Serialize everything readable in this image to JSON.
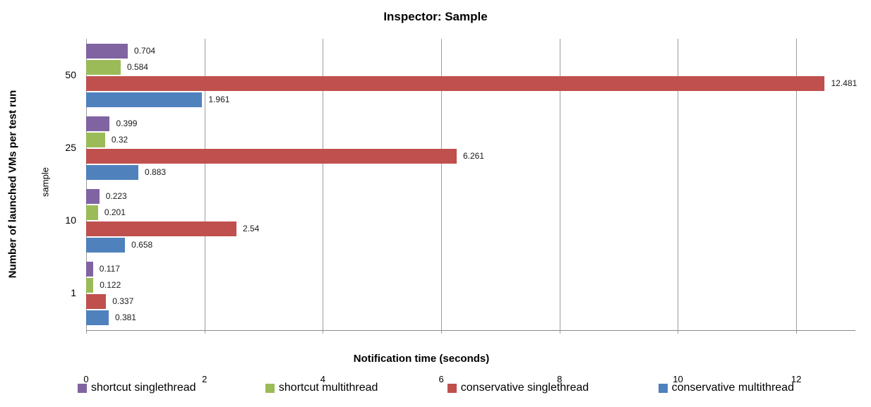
{
  "chart_data": {
    "type": "bar",
    "orientation": "horizontal",
    "title": "Inspector: Sample",
    "xlabel": "Notification time (seconds)",
    "ylabel": "Number of launched VMs per test run",
    "ylabel_secondary": "sample",
    "categories": [
      "50",
      "25",
      "10",
      "1"
    ],
    "series": [
      {
        "name": "shortcut singlethread",
        "color": "#8064A2",
        "values": [
          0.704,
          0.399,
          0.223,
          0.117
        ]
      },
      {
        "name": "shortcut multithread",
        "color": "#9BBB59",
        "values": [
          0.584,
          0.32,
          0.201,
          0.122
        ]
      },
      {
        "name": "conservative singlethread",
        "color": "#C0504D",
        "values": [
          12.481,
          6.261,
          2.54,
          0.337
        ]
      },
      {
        "name": "conservative multithread",
        "color": "#4F81BD",
        "values": [
          1.961,
          0.883,
          0.658,
          0.381
        ]
      }
    ],
    "xlim": [
      0,
      13
    ],
    "x_ticks": [
      0,
      2,
      4,
      6,
      8,
      10,
      12
    ],
    "grid": "vertical-major",
    "legend_position": "bottom",
    "value_labels_shown": true
  },
  "colors": {
    "gridline": "#9d9d9d",
    "axis_line": "#8a8a8a",
    "background": "#ffffff",
    "text": "#000000"
  }
}
